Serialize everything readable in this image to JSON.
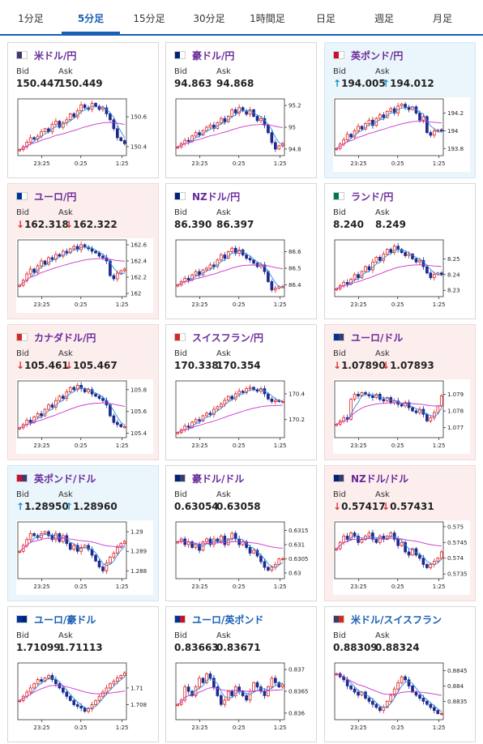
{
  "tabs": [
    {
      "label": "1分足",
      "active": false
    },
    {
      "label": "5分足",
      "active": true
    },
    {
      "label": "15分足",
      "active": false
    },
    {
      "label": "30分足",
      "active": false
    },
    {
      "label": "1時間足",
      "active": false
    },
    {
      "label": "日足",
      "active": false
    },
    {
      "label": "週足",
      "active": false
    },
    {
      "label": "月足",
      "active": false
    }
  ],
  "quote_labels": {
    "bid": "Bid",
    "ask": "Ask"
  },
  "colors": {
    "accent": "#1a5fb4",
    "up_arrow": "#1a8fd0",
    "down_arrow": "#dd3333",
    "candle_up": "#e0201b",
    "candle_down": "#1c2b8c",
    "ma_fast": "#2a8ce0",
    "ma_slow": "#c832d2"
  },
  "pairs": [
    {
      "name": "米ドル/円",
      "flag": "us-jp-flag",
      "flag_colors": [
        "#3c3b6e",
        "#ffffff"
      ],
      "trend": "none",
      "name_color": "purple",
      "bid": "150.447",
      "ask": "150.449",
      "chart_data": {
        "type": "candlestick",
        "x_ticks": [
          "23:25",
          "0:25",
          "1:25"
        ],
        "y_ticks": [
          "150.6",
          "150.4"
        ],
        "ylim": [
          150.34,
          150.72
        ],
        "closes": [
          150.38,
          150.4,
          150.43,
          150.46,
          150.45,
          150.47,
          150.5,
          150.52,
          150.5,
          150.55,
          150.57,
          150.53,
          150.56,
          150.58,
          150.62,
          150.6,
          150.64,
          150.68,
          150.66,
          150.65,
          150.69,
          150.67,
          150.65,
          150.66,
          150.62,
          150.58,
          150.52,
          150.46,
          150.44,
          150.42
        ]
      }
    },
    {
      "name": "豪ドル/円",
      "flag": "au-jp-flag",
      "flag_colors": [
        "#00247d",
        "#ffffff"
      ],
      "trend": "none",
      "name_color": "purple",
      "bid": "94.863",
      "ask": "94.868",
      "chart_data": {
        "type": "candlestick",
        "x_ticks": [
          "23:25",
          "0:25",
          "1:25"
        ],
        "y_ticks": [
          "95.2",
          "95",
          "94.8"
        ],
        "ylim": [
          94.74,
          95.26
        ],
        "closes": [
          94.82,
          94.85,
          94.88,
          94.87,
          94.92,
          94.95,
          94.93,
          94.97,
          95.0,
          95.02,
          94.99,
          95.04,
          95.08,
          95.05,
          95.1,
          95.16,
          95.13,
          95.18,
          95.15,
          95.12,
          95.16,
          95.1,
          95.06,
          95.08,
          95.02,
          94.95,
          94.86,
          94.8,
          94.83,
          94.85
        ]
      }
    },
    {
      "name": "英ポンド/円",
      "flag": "gb-jp-flag",
      "flag_colors": [
        "#c8102e",
        "#ffffff"
      ],
      "trend": "up",
      "name_color": "purple",
      "bid": "194.005",
      "ask": "194.012",
      "chart_data": {
        "type": "candlestick",
        "x_ticks": [
          "23:25",
          "0:25",
          "1:25"
        ],
        "y_ticks": [
          "194.2",
          "194",
          "193.8"
        ],
        "ylim": [
          193.72,
          194.36
        ],
        "closes": [
          193.8,
          193.85,
          193.9,
          193.96,
          193.93,
          194.0,
          194.05,
          194.02,
          194.08,
          194.12,
          194.06,
          194.14,
          194.18,
          194.15,
          194.22,
          194.25,
          194.2,
          194.28,
          194.3,
          194.26,
          194.24,
          194.27,
          194.2,
          194.12,
          194.16,
          193.98,
          193.95,
          194.0,
          194.01,
          194.0
        ]
      }
    },
    {
      "name": "ユーロ/円",
      "flag": "eu-jp-flag",
      "flag_colors": [
        "#003399",
        "#ffffff"
      ],
      "trend": "down",
      "name_color": "purple",
      "bid": "162.318",
      "ask": "162.322",
      "chart_data": {
        "type": "candlestick",
        "x_ticks": [
          "23:25",
          "0:25",
          "1:25"
        ],
        "y_ticks": [
          "162.6",
          "162.4",
          "162.2",
          "162"
        ],
        "ylim": [
          161.96,
          162.66
        ],
        "closes": [
          162.1,
          162.16,
          162.24,
          162.3,
          162.26,
          162.34,
          162.4,
          162.36,
          162.44,
          162.42,
          162.48,
          162.46,
          162.52,
          162.5,
          162.55,
          162.58,
          162.54,
          162.6,
          162.57,
          162.55,
          162.52,
          162.5,
          162.46,
          162.44,
          162.4,
          162.22,
          162.18,
          162.25,
          162.28,
          162.3
        ]
      }
    },
    {
      "name": "NZドル/円",
      "flag": "nz-jp-flag",
      "flag_colors": [
        "#00247d",
        "#ffffff"
      ],
      "trend": "none",
      "name_color": "purple",
      "bid": "86.390",
      "ask": "86.397",
      "chart_data": {
        "type": "candlestick",
        "x_ticks": [
          "23:25",
          "0:25",
          "1:25"
        ],
        "y_ticks": [
          "86.6",
          "86.5",
          "86.4"
        ],
        "ylim": [
          86.33,
          86.67
        ],
        "closes": [
          86.4,
          86.42,
          86.44,
          86.43,
          86.46,
          86.48,
          86.46,
          86.49,
          86.5,
          86.52,
          86.51,
          86.55,
          86.58,
          86.56,
          86.6,
          86.62,
          86.59,
          86.61,
          86.58,
          86.56,
          86.55,
          86.53,
          86.51,
          86.52,
          86.48,
          86.42,
          86.37,
          86.38,
          86.39,
          86.39
        ]
      }
    },
    {
      "name": "ランド/円",
      "flag": "za-jp-flag",
      "flag_colors": [
        "#007a4d",
        "#ffffff"
      ],
      "trend": "none",
      "name_color": "purple",
      "bid": "8.240",
      "ask": "8.249",
      "chart_data": {
        "type": "candlestick",
        "x_ticks": [
          "23:25",
          "0:25",
          "1:25"
        ],
        "y_ticks": [
          "8.25",
          "8.24",
          "8.23"
        ],
        "ylim": [
          8.226,
          8.262
        ],
        "closes": [
          8.231,
          8.233,
          8.235,
          8.234,
          8.237,
          8.24,
          8.238,
          8.242,
          8.245,
          8.243,
          8.248,
          8.251,
          8.249,
          8.253,
          8.256,
          8.254,
          8.258,
          8.256,
          8.254,
          8.252,
          8.253,
          8.25,
          8.248,
          8.249,
          8.245,
          8.241,
          8.238,
          8.24,
          8.241,
          8.24
        ]
      }
    },
    {
      "name": "カナダドル/円",
      "flag": "ca-jp-flag",
      "flag_colors": [
        "#d52b1e",
        "#ffffff"
      ],
      "trend": "down",
      "name_color": "purple",
      "bid": "105.461",
      "ask": "105.467",
      "chart_data": {
        "type": "candlestick",
        "x_ticks": [
          "23:25",
          "0:25",
          "1:25"
        ],
        "y_ticks": [
          "105.8",
          "105.6",
          "105.4"
        ],
        "ylim": [
          105.36,
          105.88
        ],
        "closes": [
          105.45,
          105.48,
          105.52,
          105.5,
          105.55,
          105.58,
          105.56,
          105.62,
          105.66,
          105.64,
          105.7,
          105.74,
          105.72,
          105.78,
          105.82,
          105.8,
          105.84,
          105.81,
          105.78,
          105.8,
          105.76,
          105.74,
          105.72,
          105.7,
          105.66,
          105.56,
          105.5,
          105.48,
          105.46,
          105.46
        ]
      }
    },
    {
      "name": "スイスフラン/円",
      "flag": "ch-jp-flag",
      "flag_colors": [
        "#d52b1e",
        "#ffffff"
      ],
      "trend": "none",
      "name_color": "purple",
      "bid": "170.338",
      "ask": "170.354",
      "chart_data": {
        "type": "candlestick",
        "x_ticks": [
          "23:25",
          "0:25",
          "1:25"
        ],
        "y_ticks": [
          "170.4",
          "170.2"
        ],
        "ylim": [
          170.06,
          170.5
        ],
        "closes": [
          170.1,
          170.12,
          170.15,
          170.14,
          170.18,
          170.2,
          170.19,
          170.23,
          170.25,
          170.24,
          170.28,
          170.3,
          170.32,
          170.35,
          170.38,
          170.36,
          170.4,
          170.42,
          170.41,
          170.44,
          170.45,
          170.43,
          170.42,
          170.44,
          170.4,
          170.36,
          170.34,
          170.35,
          170.34,
          170.34
        ]
      }
    },
    {
      "name": "ユーロ/ドル",
      "flag": "eu-us-flag",
      "flag_colors": [
        "#003399",
        "#3c3b6e"
      ],
      "trend": "down",
      "name_color": "purple",
      "bid": "1.07890",
      "ask": "1.07893",
      "chart_data": {
        "type": "candlestick",
        "x_ticks": [
          "23:25",
          "0:25",
          "1:25"
        ],
        "y_ticks": [
          "1.079",
          "1.078",
          "1.077"
        ],
        "ylim": [
          1.0764,
          1.0798
        ],
        "closes": [
          1.0772,
          1.0774,
          1.0776,
          1.0775,
          1.0787,
          1.079,
          1.0789,
          1.0791,
          1.079,
          1.0789,
          1.0788,
          1.079,
          1.0787,
          1.0786,
          1.0788,
          1.0785,
          1.0786,
          1.0784,
          1.0783,
          1.0785,
          1.0782,
          1.078,
          1.0779,
          1.0781,
          1.0778,
          1.0774,
          1.0776,
          1.0779,
          1.0783,
          1.0789
        ]
      }
    },
    {
      "name": "英ポンド/ドル",
      "flag": "gb-us-flag",
      "flag_colors": [
        "#c8102e",
        "#3c3b6e"
      ],
      "trend": "up",
      "name_color": "purple",
      "bid": "1.28950",
      "ask": "1.28960",
      "chart_data": {
        "type": "candlestick",
        "x_ticks": [
          "23:25",
          "0:25",
          "1:25"
        ],
        "y_ticks": [
          "1.29",
          "1.289",
          "1.288"
        ],
        "ylim": [
          1.2876,
          1.2905
        ],
        "closes": [
          1.289,
          1.2893,
          1.2896,
          1.2899,
          1.2898,
          1.2897,
          1.2899,
          1.29,
          1.2898,
          1.2896,
          1.2899,
          1.2895,
          1.2898,
          1.2894,
          1.2891,
          1.2893,
          1.289,
          1.2892,
          1.2893,
          1.2891,
          1.2888,
          1.2885,
          1.2882,
          1.288,
          1.2884,
          1.2887,
          1.2889,
          1.2892,
          1.2894,
          1.2895
        ]
      }
    },
    {
      "name": "豪ドル/ドル",
      "flag": "au-us-flag",
      "flag_colors": [
        "#00247d",
        "#3c3b6e"
      ],
      "trend": "none",
      "name_color": "purple",
      "bid": "0.63054",
      "ask": "0.63058",
      "chart_data": {
        "type": "candlestick",
        "x_ticks": [
          "23:25",
          "0:25",
          "1:25"
        ],
        "y_ticks": [
          "0.6315",
          "0.631",
          "0.6305",
          "0.63"
        ],
        "ylim": [
          0.6298,
          0.6318
        ],
        "closes": [
          0.6311,
          0.6312,
          0.631,
          0.6311,
          0.6309,
          0.631,
          0.6308,
          0.6311,
          0.6312,
          0.631,
          0.6312,
          0.6311,
          0.6313,
          0.631,
          0.6312,
          0.6314,
          0.6312,
          0.631,
          0.6311,
          0.6309,
          0.6307,
          0.6308,
          0.6306,
          0.6304,
          0.6302,
          0.6301,
          0.6302,
          0.6303,
          0.6305,
          0.6305
        ]
      }
    },
    {
      "name": "NZドル/ドル",
      "flag": "nz-us-flag",
      "flag_colors": [
        "#00247d",
        "#3c3b6e"
      ],
      "trend": "down",
      "name_color": "purple",
      "bid": "0.57417",
      "ask": "0.57431",
      "chart_data": {
        "type": "candlestick",
        "x_ticks": [
          "23:25",
          "0:25",
          "1:25"
        ],
        "y_ticks": [
          "0.575",
          "0.5745",
          "0.574",
          "0.5735"
        ],
        "ylim": [
          0.57335,
          0.57515
        ],
        "closes": [
          0.5743,
          0.5745,
          0.5747,
          0.5746,
          0.5748,
          0.5747,
          0.5745,
          0.5746,
          0.5747,
          0.5748,
          0.5746,
          0.5745,
          0.5747,
          0.5746,
          0.5747,
          0.5748,
          0.5746,
          0.5744,
          0.5745,
          0.5742,
          0.5741,
          0.5743,
          0.5741,
          0.574,
          0.5738,
          0.5737,
          0.5738,
          0.5739,
          0.574,
          0.5742
        ]
      }
    },
    {
      "name": "ユーロ/豪ドル",
      "flag": "eu-au-flag",
      "flag_colors": [
        "#003399",
        "#00247d"
      ],
      "trend": "none",
      "name_color": "blue",
      "bid": "1.71099",
      "ask": "1.71113",
      "chart_data": {
        "type": "candlestick",
        "x_ticks": [
          "23:25",
          "0:25",
          "1:25"
        ],
        "y_ticks": [
          "1.71",
          "1.708"
        ],
        "ylim": [
          1.7062,
          1.713
        ],
        "closes": [
          1.7085,
          1.709,
          1.7095,
          1.71,
          1.7105,
          1.711,
          1.7108,
          1.7112,
          1.7115,
          1.711,
          1.7105,
          1.71,
          1.7095,
          1.709,
          1.7085,
          1.708,
          1.7078,
          1.7076,
          1.7072,
          1.7075,
          1.708,
          1.7085,
          1.709,
          1.7095,
          1.71,
          1.7105,
          1.7108,
          1.7112,
          1.7115,
          1.7118
        ]
      }
    },
    {
      "name": "ユーロ/英ポンド",
      "flag": "eu-gb-flag",
      "flag_colors": [
        "#003399",
        "#c8102e"
      ],
      "trend": "none",
      "name_color": "blue",
      "bid": "0.83663",
      "ask": "0.83671",
      "chart_data": {
        "type": "candlestick",
        "x_ticks": [
          "23:25",
          "0:25",
          "1:25"
        ],
        "y_ticks": [
          "0.837",
          "0.8365",
          "0.836"
        ],
        "ylim": [
          0.83585,
          0.83715
        ],
        "closes": [
          0.8362,
          0.8363,
          0.8366,
          0.8365,
          0.8364,
          0.8366,
          0.8368,
          0.8367,
          0.8369,
          0.8368,
          0.8366,
          0.8364,
          0.8362,
          0.8363,
          0.8365,
          0.8364,
          0.8366,
          0.8365,
          0.8364,
          0.8363,
          0.8365,
          0.8367,
          0.8366,
          0.8365,
          0.8364,
          0.8366,
          0.8368,
          0.8367,
          0.8366,
          0.83665
        ]
      }
    },
    {
      "name": "米ドル/スイスフラン",
      "flag": "us-ch-flag",
      "flag_colors": [
        "#3c3b6e",
        "#d52b1e"
      ],
      "trend": "none",
      "name_color": "blue",
      "bid": "0.88309",
      "ask": "0.88324",
      "chart_data": {
        "type": "candlestick",
        "x_ticks": [
          "23:25",
          "0:25",
          "1:25"
        ],
        "y_ticks": [
          "0.8845",
          "0.884",
          "0.8835"
        ],
        "ylim": [
          0.8829,
          0.88475
        ],
        "closes": [
          0.8844,
          0.8843,
          0.8842,
          0.884,
          0.8839,
          0.8838,
          0.8837,
          0.8838,
          0.8836,
          0.8835,
          0.8834,
          0.8833,
          0.8832,
          0.8833,
          0.8835,
          0.8837,
          0.8839,
          0.8841,
          0.8843,
          0.8842,
          0.884,
          0.8838,
          0.8837,
          0.8836,
          0.8835,
          0.8834,
          0.8833,
          0.8832,
          0.8831,
          0.8831
        ]
      }
    }
  ]
}
